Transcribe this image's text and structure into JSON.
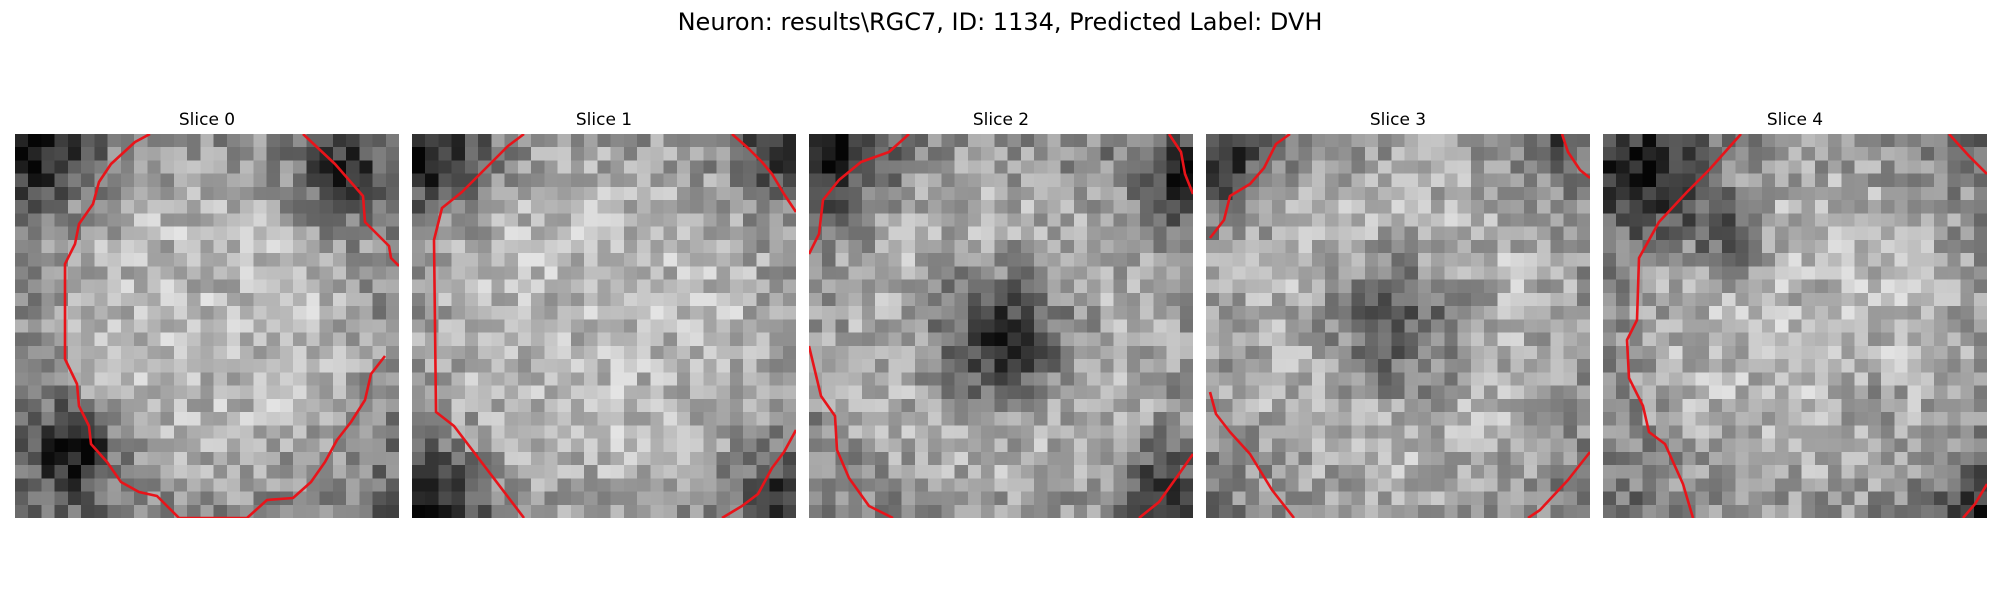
{
  "figure": {
    "title": "Neuron: results\\RGC7, ID: 1134, Predicted Label: DVH"
  },
  "contour_color": "#e8141a",
  "panels": [
    {
      "title": "Slice 0"
    },
    {
      "title": "Slice 1"
    },
    {
      "title": "Slice 2"
    },
    {
      "title": "Slice 3"
    },
    {
      "title": "Slice 4"
    }
  ]
}
